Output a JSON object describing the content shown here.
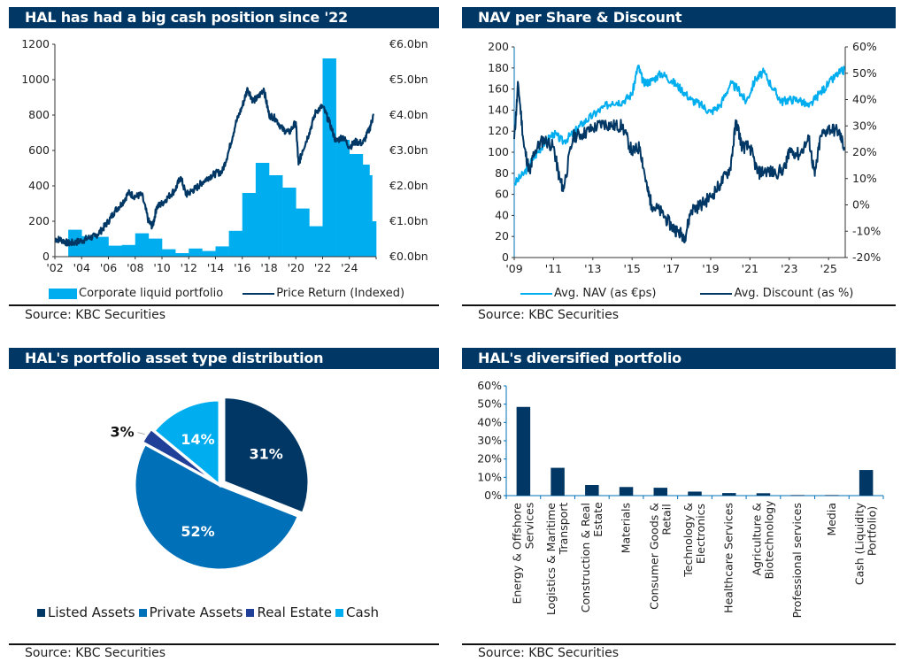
{
  "colors": {
    "header_bg": "#003764",
    "navy": "#003764",
    "light_blue": "#00aeef",
    "mid_blue": "#0070b8",
    "royal_blue": "#1f3f99"
  },
  "source_label": "Source: KBC Securities",
  "chart_data": [
    {
      "id": "cash-position",
      "type": "bar+line",
      "title": "HAL has had a big cash position since '22",
      "x_ticks": [
        "'02",
        "'04",
        "'06",
        "'08",
        "'10",
        "'12",
        "'14",
        "'16",
        "'18",
        "'20",
        "'22",
        "'24"
      ],
      "y_left": {
        "ticks": [
          "0",
          "200",
          "400",
          "600",
          "800",
          "1000",
          "1200"
        ],
        "range": [
          0,
          1200
        ]
      },
      "y_right": {
        "ticks": [
          "€0.0bn",
          "€1.0bn",
          "€2.0bn",
          "€3.0bn",
          "€4.0bn",
          "€5.0bn",
          "€6.0bn"
        ],
        "range": [
          0,
          6.0
        ],
        "unit": "€bn"
      },
      "legend": [
        "Corporate liquid portfolio",
        "Price Return (Indexed)"
      ],
      "legend_position": "bottom",
      "bar_series": {
        "name": "Corporate liquid portfolio",
        "unit": "€bn",
        "periods": [
          {
            "start": 2003.0,
            "end": 2004.0,
            "value": 0.76
          },
          {
            "start": 2004.0,
            "end": 2005.0,
            "value": 0.58
          },
          {
            "start": 2005.0,
            "end": 2006.0,
            "value": 0.56
          },
          {
            "start": 2006.0,
            "end": 2007.0,
            "value": 0.31
          },
          {
            "start": 2007.0,
            "end": 2008.0,
            "value": 0.33
          },
          {
            "start": 2008.0,
            "end": 2009.0,
            "value": 0.66
          },
          {
            "start": 2009.0,
            "end": 2010.0,
            "value": 0.51
          },
          {
            "start": 2010.0,
            "end": 2011.0,
            "value": 0.21
          },
          {
            "start": 2011.0,
            "end": 2012.0,
            "value": 0.1
          },
          {
            "start": 2012.0,
            "end": 2013.0,
            "value": 0.23
          },
          {
            "start": 2013.0,
            "end": 2014.0,
            "value": 0.16
          },
          {
            "start": 2014.0,
            "end": 2015.0,
            "value": 0.29
          },
          {
            "start": 2015.0,
            "end": 2016.0,
            "value": 0.73
          },
          {
            "start": 2016.0,
            "end": 2017.0,
            "value": 1.8
          },
          {
            "start": 2017.0,
            "end": 2018.0,
            "value": 2.65
          },
          {
            "start": 2018.0,
            "end": 2019.0,
            "value": 2.3
          },
          {
            "start": 2019.0,
            "end": 2020.0,
            "value": 1.95
          },
          {
            "start": 2020.0,
            "end": 2021.0,
            "value": 1.36
          },
          {
            "start": 2021.0,
            "end": 2022.0,
            "value": 0.86
          },
          {
            "start": 2022.0,
            "end": 2023.0,
            "value": 5.6
          },
          {
            "start": 2023.0,
            "end": 2024.0,
            "value": 3.3
          },
          {
            "start": 2024.0,
            "end": 2025.0,
            "value": 2.9
          },
          {
            "start": 2025.0,
            "end": 2025.5,
            "value": 2.6
          },
          {
            "start": 2025.5,
            "end": 2025.7,
            "value": 2.3
          },
          {
            "start": 2025.7,
            "end": 2026.0,
            "value": 1.0
          }
        ]
      },
      "line_series": {
        "name": "Price Return (Indexed)",
        "points": [
          [
            2002.0,
            100
          ],
          [
            2002.5,
            95
          ],
          [
            2003.0,
            75
          ],
          [
            2003.5,
            80
          ],
          [
            2004.0,
            90
          ],
          [
            2004.5,
            105
          ],
          [
            2005.0,
            115
          ],
          [
            2005.5,
            150
          ],
          [
            2006.0,
            200
          ],
          [
            2006.5,
            260
          ],
          [
            2007.0,
            300
          ],
          [
            2007.5,
            360
          ],
          [
            2008.0,
            340
          ],
          [
            2008.5,
            350
          ],
          [
            2009.0,
            200
          ],
          [
            2009.3,
            170
          ],
          [
            2009.6,
            280
          ],
          [
            2010.0,
            300
          ],
          [
            2010.5,
            340
          ],
          [
            2011.0,
            380
          ],
          [
            2011.4,
            450
          ],
          [
            2011.8,
            350
          ],
          [
            2012.2,
            370
          ],
          [
            2012.6,
            390
          ],
          [
            2013.0,
            420
          ],
          [
            2013.5,
            450
          ],
          [
            2014.0,
            470
          ],
          [
            2014.5,
            480
          ],
          [
            2015.0,
            600
          ],
          [
            2015.5,
            750
          ],
          [
            2016.0,
            850
          ],
          [
            2016.4,
            950
          ],
          [
            2016.8,
            880
          ],
          [
            2017.2,
            900
          ],
          [
            2017.6,
            950
          ],
          [
            2018.0,
            800
          ],
          [
            2018.5,
            780
          ],
          [
            2019.0,
            720
          ],
          [
            2019.5,
            700
          ],
          [
            2020.0,
            760
          ],
          [
            2020.2,
            520
          ],
          [
            2020.5,
            600
          ],
          [
            2021.0,
            700
          ],
          [
            2021.5,
            820
          ],
          [
            2022.0,
            850
          ],
          [
            2022.5,
            760
          ],
          [
            2023.0,
            650
          ],
          [
            2023.5,
            680
          ],
          [
            2024.0,
            620
          ],
          [
            2024.5,
            650
          ],
          [
            2025.0,
            640
          ],
          [
            2025.5,
            720
          ],
          [
            2025.8,
            800
          ]
        ]
      }
    },
    {
      "id": "nav-discount",
      "type": "line",
      "title": "NAV per Share & Discount",
      "x_ticks": [
        "'09",
        "'11",
        "'13",
        "'15",
        "'17",
        "'19",
        "'21",
        "'23",
        "'25"
      ],
      "y_left": {
        "ticks": [
          "0",
          "20",
          "40",
          "60",
          "80",
          "100",
          "120",
          "140",
          "160",
          "180",
          "200"
        ],
        "range": [
          0,
          200
        ]
      },
      "y_right": {
        "ticks": [
          "-20%",
          "-10%",
          "0%",
          "10%",
          "20%",
          "30%",
          "40%",
          "50%",
          "60%"
        ],
        "range": [
          -20,
          60
        ]
      },
      "legend": [
        "Avg. NAV (as €ps)",
        "Avg. Discount (as %)"
      ],
      "legend_position": "bottom",
      "series": [
        {
          "name": "Avg. NAV (as €ps)",
          "axis": "left",
          "points": [
            [
              2009.0,
              70
            ],
            [
              2009.5,
              80
            ],
            [
              2010.0,
              95
            ],
            [
              2010.5,
              108
            ],
            [
              2011.0,
              118
            ],
            [
              2011.5,
              110
            ],
            [
              2012.0,
              118
            ],
            [
              2012.5,
              128
            ],
            [
              2013.0,
              135
            ],
            [
              2013.5,
              142
            ],
            [
              2014.0,
              148
            ],
            [
              2014.5,
              148
            ],
            [
              2015.0,
              155
            ],
            [
              2015.3,
              182
            ],
            [
              2015.6,
              165
            ],
            [
              2016.0,
              168
            ],
            [
              2016.5,
              175
            ],
            [
              2017.0,
              168
            ],
            [
              2017.5,
              160
            ],
            [
              2018.0,
              150
            ],
            [
              2018.5,
              145
            ],
            [
              2019.0,
              138
            ],
            [
              2019.5,
              145
            ],
            [
              2020.0,
              165
            ],
            [
              2020.4,
              160
            ],
            [
              2020.8,
              148
            ],
            [
              2021.3,
              170
            ],
            [
              2021.7,
              176
            ],
            [
              2022.2,
              160
            ],
            [
              2022.6,
              148
            ],
            [
              2023.0,
              150
            ],
            [
              2023.5,
              150
            ],
            [
              2024.0,
              143
            ],
            [
              2024.5,
              155
            ],
            [
              2025.0,
              165
            ],
            [
              2025.5,
              175
            ],
            [
              2025.8,
              178
            ]
          ]
        },
        {
          "name": "Avg. Discount (as %)",
          "axis": "right",
          "points": [
            [
              2009.0,
              25
            ],
            [
              2009.2,
              46
            ],
            [
              2009.5,
              22
            ],
            [
              2009.8,
              12
            ],
            [
              2010.0,
              20
            ],
            [
              2010.5,
              25
            ],
            [
              2011.0,
              22
            ],
            [
              2011.3,
              10
            ],
            [
              2011.5,
              6
            ],
            [
              2012.0,
              26
            ],
            [
              2012.5,
              27
            ],
            [
              2013.0,
              29
            ],
            [
              2013.5,
              31
            ],
            [
              2014.0,
              30
            ],
            [
              2014.5,
              30
            ],
            [
              2015.0,
              20
            ],
            [
              2015.4,
              22
            ],
            [
              2015.8,
              5
            ],
            [
              2016.0,
              0
            ],
            [
              2016.5,
              -3
            ],
            [
              2017.0,
              -8
            ],
            [
              2017.3,
              -10
            ],
            [
              2017.7,
              -12
            ],
            [
              2018.0,
              -2
            ],
            [
              2018.5,
              0
            ],
            [
              2019.0,
              3
            ],
            [
              2019.5,
              8
            ],
            [
              2020.0,
              14
            ],
            [
              2020.3,
              32
            ],
            [
              2020.6,
              22
            ],
            [
              2021.0,
              22
            ],
            [
              2021.4,
              12
            ],
            [
              2021.8,
              13
            ],
            [
              2022.3,
              12
            ],
            [
              2022.8,
              14
            ],
            [
              2023.0,
              21
            ],
            [
              2023.5,
              19
            ],
            [
              2024.0,
              25
            ],
            [
              2024.3,
              11
            ],
            [
              2024.6,
              26
            ],
            [
              2025.0,
              29
            ],
            [
              2025.5,
              28
            ],
            [
              2025.8,
              22
            ]
          ]
        }
      ]
    },
    {
      "id": "asset-type",
      "type": "pie",
      "title": "HAL's portfolio asset type distribution",
      "legend_position": "bottom",
      "slices": [
        {
          "label": "Listed Assets",
          "value": 31,
          "text": "31%",
          "color": "#003764"
        },
        {
          "label": "Private Assets",
          "value": 52,
          "text": "52%",
          "color": "#0070b8"
        },
        {
          "label": "Real Estate",
          "value": 3,
          "text": "3%",
          "color": "#1f3f99"
        },
        {
          "label": "Cash",
          "value": 14,
          "text": "14%",
          "color": "#00aeef"
        }
      ]
    },
    {
      "id": "diversified",
      "type": "bar",
      "title": "HAL's diversified portfolio",
      "categories": [
        [
          "Energy & Offshore",
          "Services"
        ],
        [
          "Logistics & Maritime",
          "Transport"
        ],
        [
          "Construction & Real",
          "Estate"
        ],
        [
          "Materials"
        ],
        [
          "Consumer Goods &",
          "Retail"
        ],
        [
          "Technology &",
          "Electronics"
        ],
        [
          "Healthcare Services"
        ],
        [
          "Agriculture &",
          "Biotechnology"
        ],
        [
          "Professional services"
        ],
        [
          "Media"
        ],
        [
          "Cash (Liquidity",
          "Portfolio)"
        ]
      ],
      "values": [
        48.5,
        15.2,
        5.8,
        4.7,
        4.3,
        2.2,
        1.4,
        1.3,
        0.3,
        0.3,
        14.0
      ],
      "y_ticks": [
        "0%",
        "10%",
        "20%",
        "30%",
        "40%",
        "50%",
        "60%"
      ],
      "ylim": [
        0,
        60
      ],
      "unit": "%"
    }
  ]
}
